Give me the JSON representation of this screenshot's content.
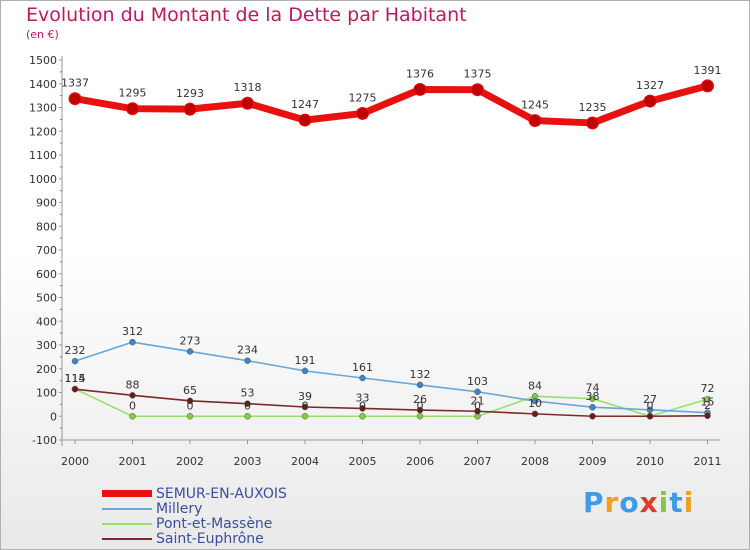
{
  "header": {
    "title": "Evolution du Montant de la Dette par Habitant",
    "subtitle": "(en €)"
  },
  "brand": {
    "text": "Proxiti",
    "colors": [
      "#3d9be9",
      "#f0a020",
      "#3d9be9",
      "#e23b2e",
      "#8bc34a",
      "#3d9be9",
      "#f0a020"
    ]
  },
  "chart_data": {
    "type": "line",
    "title": "Evolution du Montant de la Dette par Habitant",
    "subtitle": "(en €)",
    "x": [
      "2000",
      "2001",
      "2002",
      "2003",
      "2004",
      "2005",
      "2006",
      "2007",
      "2008",
      "2009",
      "2010",
      "2011"
    ],
    "ylim": [
      -100,
      1500
    ],
    "yticks": [
      -100,
      0,
      100,
      200,
      300,
      400,
      500,
      600,
      700,
      800,
      900,
      1000,
      1100,
      1200,
      1300,
      1400,
      1500
    ],
    "grid": false,
    "legend": "bottom-left",
    "series": [
      {
        "name": "SEMUR-EN-AUXOIS",
        "values": [
          1337,
          1295,
          1293,
          1318,
          1247,
          1275,
          1376,
          1375,
          1245,
          1235,
          1327,
          1391
        ],
        "labels": [
          "1337",
          "1295",
          "1293",
          "1318",
          "1247",
          "1275",
          "1376",
          "1375",
          "1245",
          "1235",
          "1327",
          "1391"
        ],
        "color": "#e8110f",
        "marker_color": "#c00000",
        "style": "thick"
      },
      {
        "name": "Millery",
        "values": [
          232,
          312,
          273,
          234,
          191,
          161,
          132,
          103,
          64,
          38,
          27,
          15
        ],
        "labels": [
          "232",
          "312",
          "273",
          "234",
          "191",
          "161",
          "132",
          "103",
          "",
          "38",
          "27",
          "15"
        ],
        "color": "#6aa7d8",
        "marker_color": "#3f86c6",
        "style": "thin"
      },
      {
        "name": "Pont-et-Massène",
        "values": [
          115,
          0,
          0,
          0,
          0,
          0,
          0,
          0,
          84,
          74,
          0,
          72
        ],
        "labels": [
          "115",
          "0",
          "0",
          "0",
          "0",
          "0",
          "0",
          "0",
          "84",
          "74",
          "0",
          "72"
        ],
        "color": "#99e06a",
        "marker_color": "#7fd040",
        "style": "thin"
      },
      {
        "name": "Saint-Euphrône",
        "values": [
          114,
          88,
          65,
          53,
          39,
          33,
          26,
          21,
          10,
          0,
          0,
          2
        ],
        "labels": [
          "114",
          "88",
          "65",
          "53",
          "39",
          "33",
          "26",
          "21",
          "10",
          "",
          "",
          "2"
        ],
        "color": "#7a2a2a",
        "marker_color": "#6b1a1a",
        "style": "thin"
      }
    ]
  }
}
